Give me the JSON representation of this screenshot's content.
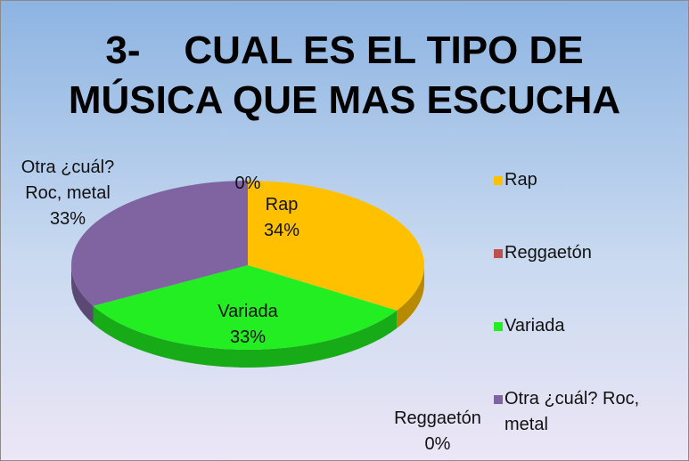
{
  "chart_data": {
    "type": "pie",
    "title": "3-    CUAL ES EL TIPO DE\nMÚSICA QUE MAS ESCUCHA",
    "categories": [
      "Rap",
      "Reggaetón",
      "Variada",
      "Otra ¿cuál? Roc, metal",
      null
    ],
    "values": [
      34,
      0,
      33,
      33,
      0
    ],
    "value_labels": [
      "34%",
      "0%",
      "33%",
      "33%",
      "0%"
    ],
    "colors": [
      "#ffc000",
      "#c0504d",
      "#22ee22",
      "#8064a2",
      "#4f81bd"
    ],
    "legend": "right"
  }
}
